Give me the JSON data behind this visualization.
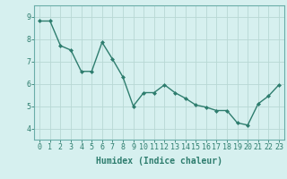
{
  "x": [
    0,
    1,
    2,
    3,
    4,
    5,
    6,
    7,
    8,
    9,
    10,
    11,
    12,
    13,
    14,
    15,
    16,
    17,
    18,
    19,
    20,
    21,
    22,
    23
  ],
  "y": [
    8.8,
    8.8,
    7.7,
    7.5,
    6.55,
    6.55,
    7.85,
    7.1,
    6.3,
    5.0,
    5.6,
    5.6,
    5.95,
    5.6,
    5.35,
    5.05,
    4.95,
    4.8,
    4.8,
    4.25,
    4.15,
    5.1,
    5.45,
    5.95
  ],
  "line_color": "#2e7d6e",
  "marker": "D",
  "marker_size": 2.0,
  "bg_color": "#d6f0ef",
  "grid_color": "#b8d8d4",
  "xlabel": "Humidex (Indice chaleur)",
  "ylim": [
    3.5,
    9.5
  ],
  "xlim": [
    -0.5,
    23.5
  ],
  "yticks": [
    4,
    5,
    6,
    7,
    8,
    9
  ],
  "xticks": [
    0,
    1,
    2,
    3,
    4,
    5,
    6,
    7,
    8,
    9,
    10,
    11,
    12,
    13,
    14,
    15,
    16,
    17,
    18,
    19,
    20,
    21,
    22,
    23
  ],
  "xlabel_fontsize": 7,
  "tick_fontsize": 6,
  "line_width": 1.0,
  "spine_color": "#6aada8"
}
